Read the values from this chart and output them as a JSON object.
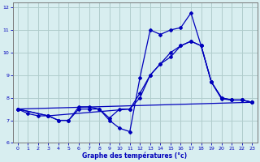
{
  "xlabel": "Graphe des températures (°c)",
  "bg_color": "#d8eef0",
  "grid_color": "#b0cccc",
  "line_color": "#0000bb",
  "xlim": [
    -0.5,
    23.5
  ],
  "ylim": [
    6,
    12.2
  ],
  "yticks": [
    6,
    7,
    8,
    9,
    10,
    11,
    12
  ],
  "xticks": [
    0,
    1,
    2,
    3,
    4,
    5,
    6,
    7,
    8,
    9,
    10,
    11,
    12,
    13,
    14,
    15,
    16,
    17,
    18,
    19,
    20,
    21,
    22,
    23
  ],
  "line1_x": [
    0,
    1,
    2,
    3,
    4,
    5,
    6,
    7,
    8,
    9,
    10,
    11,
    12,
    13,
    14,
    15,
    16,
    17,
    18,
    19,
    20,
    21,
    22,
    23
  ],
  "line1_y": [
    7.5,
    7.3,
    7.2,
    7.2,
    7.0,
    7.0,
    7.5,
    7.5,
    7.5,
    7.0,
    6.65,
    6.5,
    8.9,
    11.0,
    10.8,
    11.0,
    11.1,
    11.75,
    10.3,
    8.7,
    7.95,
    7.9,
    7.9,
    7.8
  ],
  "line2_x": [
    0,
    3,
    11,
    12,
    13,
    14,
    15,
    16,
    17,
    18,
    19,
    20,
    21,
    22,
    23
  ],
  "line2_y": [
    7.5,
    7.2,
    7.5,
    8.0,
    9.0,
    9.5,
    10.0,
    10.3,
    10.5,
    10.3,
    8.7,
    8.0,
    7.9,
    7.9,
    7.8
  ],
  "line3_x": [
    0,
    23
  ],
  "line3_y": [
    7.5,
    7.8
  ],
  "line4_x": [
    0,
    3,
    4,
    5,
    6,
    7,
    8,
    9,
    10,
    11,
    12,
    13,
    14,
    15,
    16,
    17,
    18,
    19,
    20,
    21,
    22,
    23
  ],
  "line4_y": [
    7.5,
    7.2,
    7.0,
    7.0,
    7.6,
    7.6,
    7.5,
    7.1,
    7.5,
    7.5,
    8.2,
    9.0,
    9.5,
    9.8,
    10.3,
    10.5,
    10.3,
    8.7,
    8.0,
    7.9,
    7.9,
    7.8
  ]
}
